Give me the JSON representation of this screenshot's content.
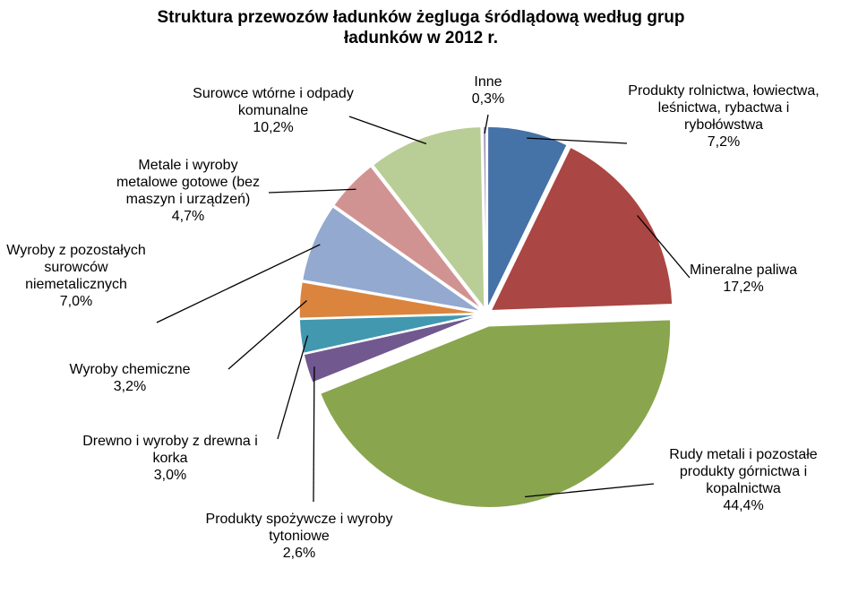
{
  "chart_data": {
    "type": "pie",
    "title": "Struktura przewozów ładunków żegluga śródlądową według grup ładunków w 2012 r.",
    "categories": [
      "Produkty rolnictwa, łowiectwa, leśnictwa, rybactwa i rybołówstwa",
      "Mineralne paliwa",
      "Rudy metali i pozostałe produkty górnictwa i kopalnictwa",
      "Produkty spożywcze i wyroby tytoniowe",
      "Drewno i wyroby z drewna i korka",
      "Wyroby chemiczne",
      "Wyroby z pozostałych surowców niemetalicznych",
      "Metale i wyroby metalowe gotowe (bez maszyn i urządzeń)",
      "Surowce wtórne i odpady komunalne",
      "Inne"
    ],
    "values": [
      7.2,
      17.2,
      44.4,
      2.6,
      3.0,
      3.2,
      7.0,
      4.7,
      10.2,
      0.3
    ],
    "value_labels": [
      "7,2%",
      "17,2%",
      "44,4%",
      "2,6%",
      "3,0%",
      "3,2%",
      "7,0%",
      "4,7%",
      "10,2%",
      "0,3%"
    ],
    "colors": [
      "#4572a7",
      "#aa4643",
      "#89a54e",
      "#71588f",
      "#4198af",
      "#db843d",
      "#93a9cf",
      "#d19392",
      "#b9cd96",
      "#a99bbd"
    ]
  }
}
